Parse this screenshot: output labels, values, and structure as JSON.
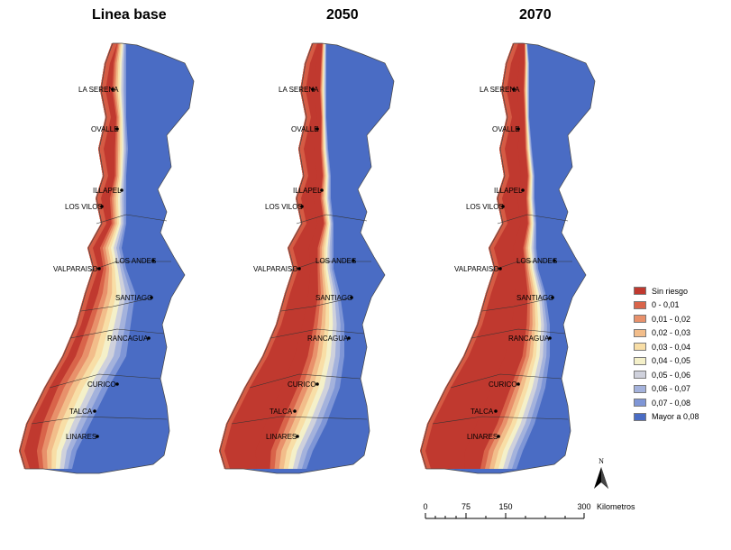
{
  "panels": [
    {
      "id": "base",
      "title": "Linea base"
    },
    {
      "id": "y2050",
      "title": "2050"
    },
    {
      "id": "y2070",
      "title": "2070"
    }
  ],
  "cities": [
    "LA SERENA",
    "OVALLE",
    "ILLAPEL",
    "LOS VILOS",
    "LOS ANDES",
    "VALPARAISO",
    "SANTIAGO",
    "RANCAGUA",
    "CURICO",
    "TALCA",
    "LINARES"
  ],
  "legend": [
    {
      "label": "Sin riesgo",
      "color": "#c0392f"
    },
    {
      "label": "0 - 0,01",
      "color": "#d9644a"
    },
    {
      "label": "0,01 - 0,02",
      "color": "#e8916b"
    },
    {
      "label": "0,02 - 0,03",
      "color": "#f2bd8a"
    },
    {
      "label": "0,03 - 0,04",
      "color": "#f8dea6"
    },
    {
      "label": "0,04 - 0,05",
      "color": "#f4f0c9"
    },
    {
      "label": "0,05 - 0,06",
      "color": "#cfd1dc"
    },
    {
      "label": "0,06 - 0,07",
      "color": "#a4b2dc"
    },
    {
      "label": "0,07 - 0,08",
      "color": "#7f96d6"
    },
    {
      "label": "Mayor a 0,08",
      "color": "#4a6cc4"
    }
  ],
  "north_label": "N",
  "scale_bar": {
    "ticks": [
      "0",
      "75",
      "150",
      "300"
    ],
    "unit": "Kilometros"
  }
}
